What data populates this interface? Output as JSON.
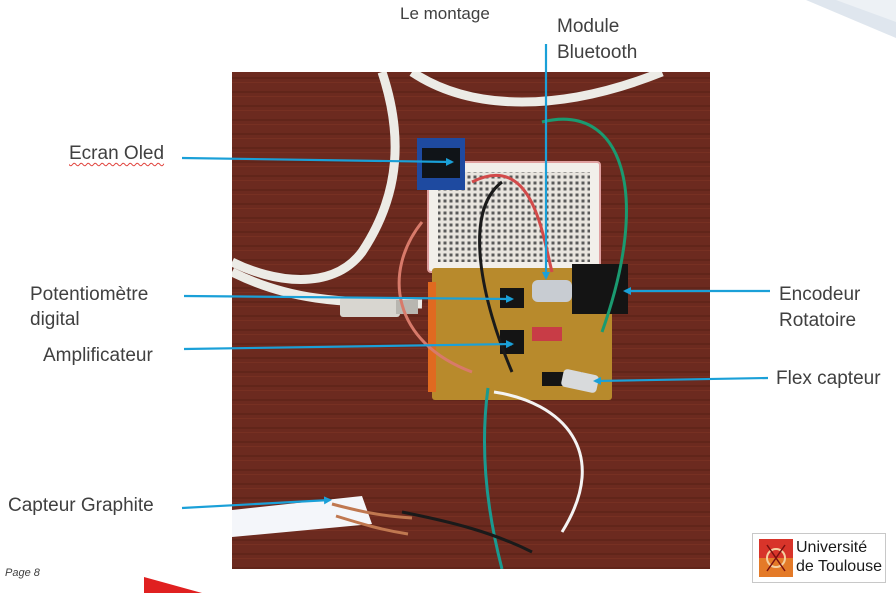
{
  "title": "Le montage",
  "labels": {
    "module_bluetooth_line1": "Module",
    "module_bluetooth_line2": "Bluetooth",
    "ecran_oled": "Ecran Oled",
    "potentiometre_line1": "Potentiomètre",
    "potentiometre_line2": "digital",
    "amplificateur": "Amplificateur",
    "encodeur_line1": "Encodeur",
    "encodeur_line2": "Rotatoire",
    "flex_capteur": "Flex capteur",
    "capteur_graphite": "Capteur Graphite"
  },
  "footer": {
    "page": "Page 8"
  },
  "logo": {
    "line1": "Université",
    "line2": "de Toulouse"
  },
  "colors": {
    "arrow": "#1aa0d8",
    "text": "#404040",
    "wood": "#6e2a1e",
    "accent_red": "#e02020"
  }
}
